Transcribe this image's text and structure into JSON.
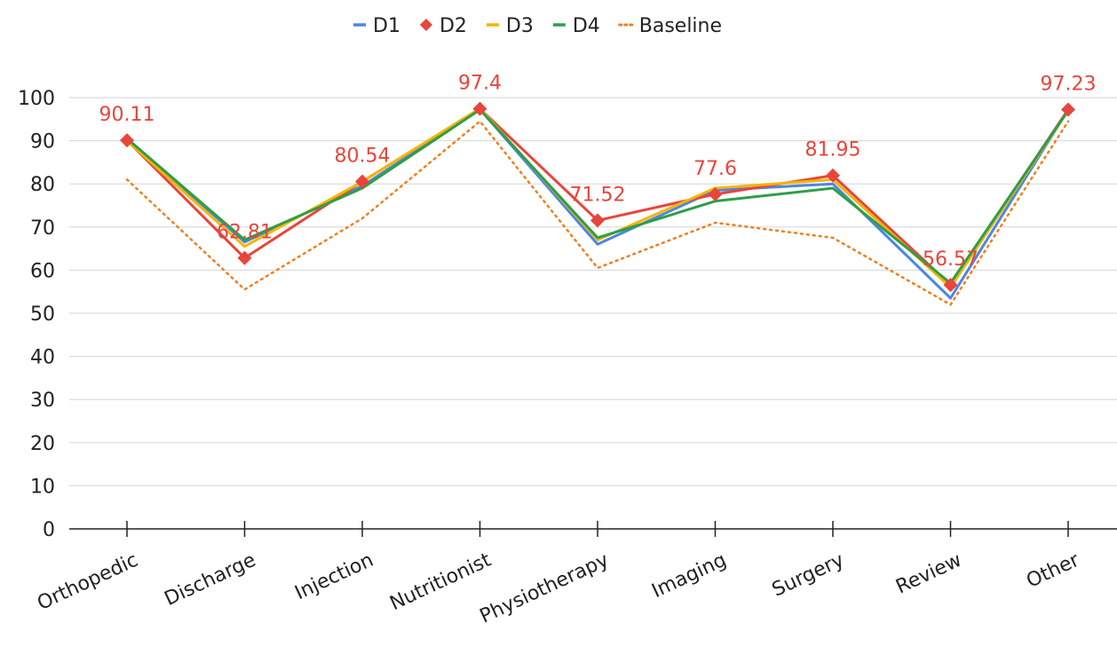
{
  "chart_data": {
    "type": "line",
    "title": "",
    "xlabel": "",
    "ylabel": "",
    "categories": [
      "Orthopedic",
      "Discharge",
      "Injection",
      "Nutritionist",
      "Physiotherapy",
      "Imaging",
      "Surgery",
      "Review",
      "Other"
    ],
    "ylim": [
      0,
      100
    ],
    "yticks": [
      0,
      10,
      20,
      30,
      40,
      50,
      60,
      70,
      80,
      90,
      100
    ],
    "grid": "horizontal",
    "legend_position": "top-center",
    "series": [
      {
        "name": "D1",
        "color": "#4a86e8",
        "style": "solid",
        "marker": "none",
        "values": [
          90.5,
          66.5,
          79.5,
          97.3,
          66.0,
          78.5,
          80.0,
          53.5,
          97.2
        ]
      },
      {
        "name": "D2",
        "color": "#e8453c",
        "style": "solid",
        "marker": "diamond",
        "show_labels": true,
        "values": [
          90.11,
          62.81,
          80.54,
          97.4,
          71.52,
          77.6,
          81.95,
          56.57,
          97.23
        ]
      },
      {
        "name": "D3",
        "color": "#f6b400",
        "style": "solid",
        "marker": "none",
        "values": [
          90.0,
          65.5,
          80.5,
          97.5,
          67.0,
          79.0,
          81.0,
          56.0,
          97.0
        ]
      },
      {
        "name": "D4",
        "color": "#2e9e47",
        "style": "solid",
        "marker": "none",
        "values": [
          90.5,
          67.0,
          79.0,
          97.2,
          67.5,
          76.0,
          79.0,
          57.0,
          97.0
        ]
      },
      {
        "name": "Baseline",
        "color": "#f07f1e",
        "style": "dotted",
        "marker": "none",
        "values": [
          81.0,
          55.5,
          72.0,
          94.5,
          60.5,
          71.0,
          67.5,
          52.0,
          94.5
        ]
      }
    ],
    "labels": [
      "90.11",
      "62.81",
      "80.54",
      "97.4",
      "71.52",
      "77.6",
      "81.95",
      "56.57",
      "97.23"
    ]
  }
}
